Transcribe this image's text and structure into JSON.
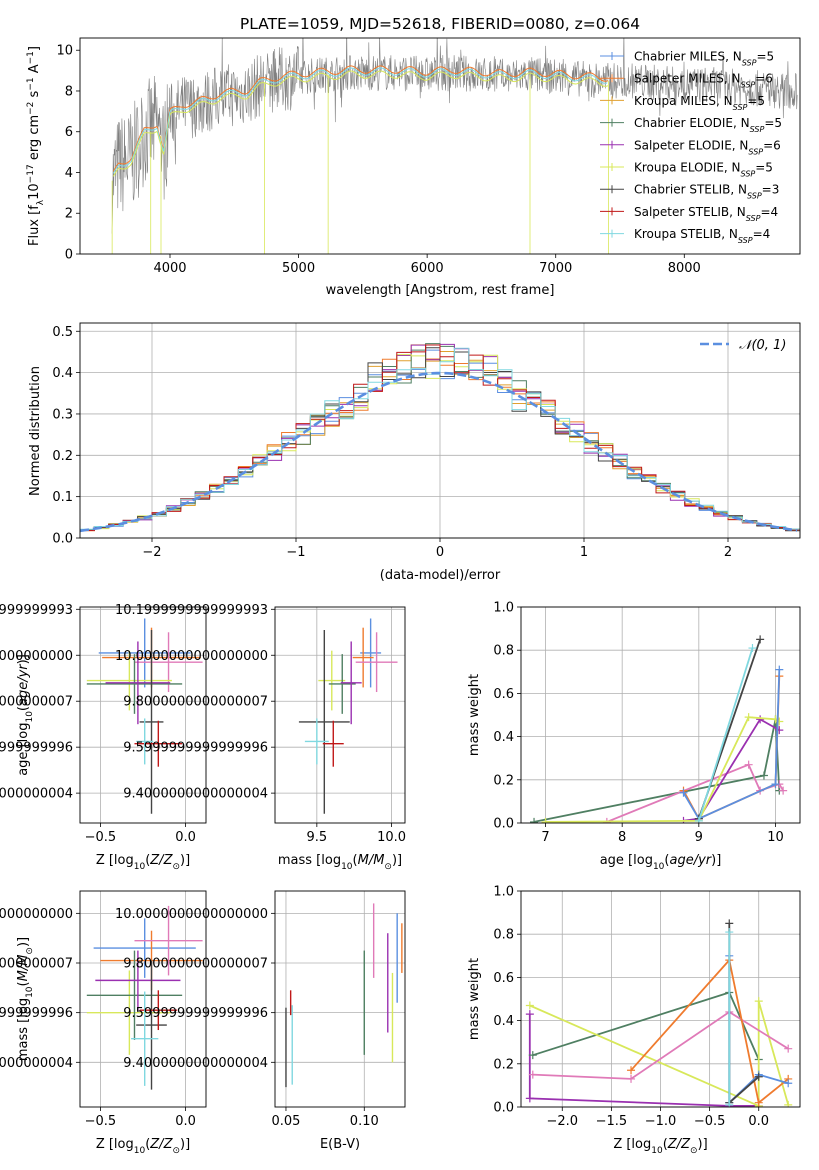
{
  "title": "PLATE=1059, MJD=52618, FIBERID=0080, z=0.064",
  "colors": {
    "chabrier_miles": "#5b8fe0",
    "salpeter_miles": "#ef7b2e",
    "kroupa_miles": "#e0a030",
    "chabrier_elodie": "#4f7f62",
    "salpeter_elodie": "#9a30b0",
    "kroupa_elodie": "#d8e85a",
    "chabrier_stelib": "#444444",
    "salpeter_stelib": "#c01818",
    "kroupa_stelib": "#80d8e0",
    "pink": "#e07ab8",
    "normal_curve": "#5b8fe0",
    "spectrum_grey": "#808080"
  },
  "legend_top": [
    {
      "name": "Chabrier MILES",
      "nssp": "5",
      "color_key": "chabrier_miles"
    },
    {
      "name": "Salpeter MILES",
      "nssp": "6",
      "color_key": "salpeter_miles"
    },
    {
      "name": "Kroupa MILES",
      "nssp": "5",
      "color_key": "kroupa_miles"
    },
    {
      "name": "Chabrier ELODIE",
      "nssp": "5",
      "color_key": "chabrier_elodie"
    },
    {
      "name": "Salpeter ELODIE",
      "nssp": "6",
      "color_key": "salpeter_elodie"
    },
    {
      "name": "Kroupa ELODIE",
      "nssp": "5",
      "color_key": "kroupa_elodie"
    },
    {
      "name": "Chabrier STELIB",
      "nssp": "3",
      "color_key": "chabrier_stelib"
    },
    {
      "name": "Salpeter STELIB",
      "nssp": "4",
      "color_key": "salpeter_stelib"
    },
    {
      "name": "Kroupa STELIB",
      "nssp": "4",
      "color_key": "kroupa_stelib"
    }
  ],
  "chart_data": [
    {
      "id": "spectrum",
      "type": "line",
      "xlabel": "wavelength [Angstrom, rest frame]",
      "ylabel": "Flux [f_λ10^-17 erg cm^-2 s^-1 A^-1]",
      "xlim": [
        3300,
        8900
      ],
      "ylim": [
        0,
        10.6
      ],
      "xticks": [
        4000,
        5000,
        6000,
        7000,
        8000
      ],
      "yticks": [
        0,
        2,
        4,
        6,
        8,
        10
      ],
      "data_profile": {
        "x": [
          3550,
          3600,
          3700,
          3800,
          3900,
          3950,
          4000,
          4100,
          4200,
          4300,
          4400,
          4500,
          4600,
          4700,
          4800,
          4900,
          5000,
          5200,
          5400,
          5600,
          5800,
          6000,
          6200,
          6400,
          6600,
          6800,
          7000,
          7200,
          7400,
          7600,
          7800,
          8000,
          8200,
          8400,
          8600,
          8800
        ],
        "y": [
          3.6,
          4.3,
          4.6,
          5.9,
          6.3,
          5.0,
          6.8,
          7.2,
          7.3,
          7.5,
          7.8,
          7.8,
          7.9,
          8.3,
          8.5,
          8.6,
          8.7,
          8.8,
          8.9,
          8.9,
          8.9,
          8.8,
          8.9,
          8.8,
          8.7,
          8.8,
          8.7,
          8.6,
          8.5,
          8.5,
          8.4,
          8.3,
          8.3,
          8.2,
          8.1,
          8.0
        ]
      }
    },
    {
      "id": "residuals",
      "type": "line",
      "xlabel": "(data-model)/error",
      "ylabel": "Normed distribution",
      "xlim": [
        -2.5,
        2.5
      ],
      "ylim": [
        0,
        0.52
      ],
      "xticks": [
        -2,
        -1,
        0,
        1,
        2
      ],
      "yticks": [
        0.0,
        0.1,
        0.2,
        0.3,
        0.4,
        0.5
      ],
      "legend": "𝒩(0, 1)",
      "grid": true
    },
    {
      "id": "z_age",
      "type": "scatter",
      "xlabel": "Z [log10(Z/Z⊙)]",
      "ylabel": "age [log10(age/yr)]",
      "xlim": [
        -0.62,
        0.12
      ],
      "ylim": [
        9.27,
        10.21
      ],
      "xticks": [
        -0.5,
        0.0
      ],
      "yticks": [
        9.4,
        9.6,
        9.8,
        10.0,
        10.2
      ],
      "grid": true,
      "points": [
        {
          "color_key": "chabrier_miles",
          "x": -0.24,
          "xerr": 0.27,
          "y": 10.01,
          "yerr": 0.15
        },
        {
          "color_key": "salpeter_miles",
          "x": -0.2,
          "xerr": 0.29,
          "y": 9.99,
          "yerr": 0.13
        },
        {
          "color_key": "pink",
          "x": -0.1,
          "xerr": 0.2,
          "y": 9.97,
          "yerr": 0.13
        },
        {
          "color_key": "kroupa_elodie",
          "x": -0.33,
          "xerr": 0.25,
          "y": 9.89,
          "yerr": 0.13
        },
        {
          "color_key": "chabrier_elodie",
          "x": -0.3,
          "xerr": 0.28,
          "y": 9.875,
          "yerr": 0.13
        },
        {
          "color_key": "salpeter_elodie",
          "x": -0.28,
          "xerr": 0.19,
          "y": 9.88,
          "yerr": 0.18
        },
        {
          "color_key": "chabrier_stelib",
          "x": -0.2,
          "xerr": 0.07,
          "y": 9.71,
          "yerr": 0.4
        },
        {
          "color_key": "salpeter_stelib",
          "x": -0.16,
          "xerr": 0.14,
          "y": 9.615,
          "yerr": 0.1
        },
        {
          "color_key": "kroupa_stelib",
          "x": -0.24,
          "xerr": 0.05,
          "y": 9.625,
          "yerr": 0.1
        }
      ]
    },
    {
      "id": "mass_age",
      "type": "scatter",
      "xlabel": "mass [log10(M/M⊙)]",
      "ylabel": "",
      "xlim": [
        9.22,
        10.09
      ],
      "ylim": [
        9.27,
        10.21
      ],
      "xticks": [
        9.5,
        10.0
      ],
      "yticks": [
        9.4,
        9.6,
        9.8,
        10.0,
        10.2
      ],
      "grid": true,
      "points": [
        {
          "color_key": "chabrier_miles",
          "x": 9.86,
          "xerr": 0.07,
          "y": 10.01,
          "yerr": 0.15
        },
        {
          "color_key": "salpeter_miles",
          "x": 9.81,
          "xerr": 0.07,
          "y": 9.99,
          "yerr": 0.13
        },
        {
          "color_key": "pink",
          "x": 9.9,
          "xerr": 0.14,
          "y": 9.97,
          "yerr": 0.13
        },
        {
          "color_key": "kroupa_elodie",
          "x": 9.6,
          "xerr": 0.09,
          "y": 9.89,
          "yerr": 0.13
        },
        {
          "color_key": "chabrier_elodie",
          "x": 9.67,
          "xerr": 0.09,
          "y": 9.875,
          "yerr": 0.13
        },
        {
          "color_key": "salpeter_elodie",
          "x": 9.73,
          "xerr": 0.07,
          "y": 9.88,
          "yerr": 0.18
        },
        {
          "color_key": "chabrier_stelib",
          "x": 9.55,
          "xerr": 0.17,
          "y": 9.71,
          "yerr": 0.4
        },
        {
          "color_key": "salpeter_stelib",
          "x": 9.61,
          "xerr": 0.07,
          "y": 9.615,
          "yerr": 0.1
        },
        {
          "color_key": "kroupa_stelib",
          "x": 9.5,
          "xerr": 0.08,
          "y": 9.625,
          "yerr": 0.1
        }
      ]
    },
    {
      "id": "age_weight",
      "type": "line",
      "xlabel": "age [log10(age/yr)]",
      "ylabel": "mass weight",
      "xlim": [
        6.68,
        10.32
      ],
      "ylim": [
        0,
        1
      ],
      "xticks": [
        7,
        8,
        9,
        10
      ],
      "yticks": [
        0.0,
        0.2,
        0.4,
        0.6,
        0.8,
        1.0
      ],
      "grid": true,
      "series": [
        {
          "color_key": "chabrier_elodie",
          "x": [
            6.85,
            9.85,
            10.0,
            10.05
          ],
          "y": [
            0.005,
            0.22,
            0.48,
            0.15
          ]
        },
        {
          "color_key": "pink",
          "x": [
            7.8,
            9.65,
            9.8,
            10.05,
            10.1
          ],
          "y": [
            0.005,
            0.27,
            0.15,
            0.18,
            0.15
          ]
        },
        {
          "color_key": "salpeter_elodie",
          "x": [
            8.8,
            9.0,
            9.8,
            10.05
          ],
          "y": [
            0.01,
            0.02,
            0.48,
            0.43
          ]
        },
        {
          "color_key": "kroupa_elodie",
          "x": [
            7.0,
            9.0,
            9.65,
            10.0,
            10.05
          ],
          "y": [
            0.005,
            0.01,
            0.49,
            0.48,
            0.47
          ]
        },
        {
          "color_key": "salpeter_miles",
          "x": [
            8.8,
            9.0,
            10.0,
            10.05
          ],
          "y": [
            0.15,
            0.02,
            0.18,
            0.68
          ]
        },
        {
          "color_key": "chabrier_miles",
          "x": [
            8.8,
            9.0,
            10.0,
            10.05
          ],
          "y": [
            0.14,
            0.02,
            0.18,
            0.71
          ]
        },
        {
          "color_key": "chabrier_stelib",
          "x": [
            9.0,
            9.8
          ],
          "y": [
            0.02,
            0.85
          ]
        },
        {
          "color_key": "kroupa_stelib",
          "x": [
            9.0,
            9.7
          ],
          "y": [
            0.01,
            0.81
          ]
        }
      ]
    },
    {
      "id": "z_mass",
      "type": "scatter",
      "xlabel": "Z [log10(Z/Z⊙)]",
      "ylabel": "mass [log10(M/M⊙)]",
      "xlim": [
        -0.62,
        0.12
      ],
      "ylim": [
        9.22,
        10.09
      ],
      "xticks": [
        -0.5,
        0.0
      ],
      "yticks": [
        9.4,
        9.6,
        9.8,
        10.0
      ],
      "grid": true,
      "points": [
        {
          "color_key": "chabrier_miles",
          "x": -0.24,
          "xerr": 0.3,
          "y": 9.86,
          "yerr": 0.12
        },
        {
          "color_key": "salpeter_miles",
          "x": -0.2,
          "xerr": 0.3,
          "y": 9.81,
          "yerr": 0.12
        },
        {
          "color_key": "pink",
          "x": -0.1,
          "xerr": 0.2,
          "y": 9.89,
          "yerr": 0.14
        },
        {
          "color_key": "kroupa_elodie",
          "x": -0.33,
          "xerr": 0.25,
          "y": 9.6,
          "yerr": 0.17
        },
        {
          "color_key": "chabrier_elodie",
          "x": -0.3,
          "xerr": 0.28,
          "y": 9.67,
          "yerr": 0.18
        },
        {
          "color_key": "salpeter_elodie",
          "x": -0.28,
          "xerr": 0.25,
          "y": 9.73,
          "yerr": 0.12
        },
        {
          "color_key": "chabrier_stelib",
          "x": -0.2,
          "xerr": 0.09,
          "y": 9.55,
          "yerr": 0.26
        },
        {
          "color_key": "salpeter_stelib",
          "x": -0.16,
          "xerr": 0.11,
          "y": 9.61,
          "yerr": 0.08
        },
        {
          "color_key": "kroupa_stelib",
          "x": -0.24,
          "xerr": 0.08,
          "y": 9.495,
          "yerr": 0.19
        }
      ]
    },
    {
      "id": "ebv_mass",
      "type": "scatter",
      "xlabel": "E(B-V)",
      "ylabel": "",
      "xlim": [
        0.043,
        0.126
      ],
      "ylim": [
        9.22,
        10.09
      ],
      "xticks": [
        0.05,
        0.1
      ],
      "xticklabels": [
        "0.05",
        "0.10"
      ],
      "yticks": [
        9.4,
        9.6,
        9.8,
        10.0
      ],
      "grid": true,
      "points": [
        {
          "color_key": "chabrier_miles",
          "x": 0.121,
          "y": 9.82,
          "yerr": 0.18
        },
        {
          "color_key": "salpeter_miles",
          "x": 0.124,
          "y": 9.86,
          "yerr": 0.1
        },
        {
          "color_key": "pink",
          "x": 0.106,
          "y": 9.89,
          "yerr": 0.15
        },
        {
          "color_key": "kroupa_elodie",
          "x": 0.118,
          "y": 9.58,
          "yerr": 0.18
        },
        {
          "color_key": "chabrier_elodie",
          "x": 0.1,
          "y": 9.64,
          "yerr": 0.21
        },
        {
          "color_key": "salpeter_elodie",
          "x": 0.115,
          "y": 9.72,
          "yerr": 0.2
        },
        {
          "color_key": "chabrier_stelib",
          "x": 0.05,
          "y": 9.46,
          "yerr": 0.16
        },
        {
          "color_key": "salpeter_stelib",
          "x": 0.053,
          "y": 9.64,
          "yerr": 0.05
        },
        {
          "color_key": "kroupa_stelib",
          "x": 0.054,
          "y": 9.47,
          "yerr": 0.16
        }
      ]
    },
    {
      "id": "z_weight",
      "type": "line",
      "xlabel": "Z [log10(Z/Z⊙)]",
      "ylabel": "mass weight",
      "xlim": [
        -2.42,
        0.42
      ],
      "ylim": [
        0,
        1
      ],
      "xticks": [
        -2.0,
        -1.5,
        -1.0,
        -0.5,
        0.0
      ],
      "yticks": [
        0.0,
        0.2,
        0.4,
        0.6,
        0.8,
        1.0
      ],
      "grid": true,
      "series": [
        {
          "color_key": "salpeter_elodie",
          "x": [
            -2.33,
            -2.33,
            -0.3,
            0.0
          ],
          "y": [
            0.43,
            0.04,
            0.005,
            0.005
          ]
        },
        {
          "color_key": "chabrier_elodie",
          "x": [
            -2.3,
            -0.3,
            0.0
          ],
          "y": [
            0.24,
            0.53,
            0.22
          ]
        },
        {
          "color_key": "kroupa_elodie",
          "x": [
            -2.33,
            0.0,
            0.0,
            0.3
          ],
          "y": [
            0.47,
            0.005,
            0.49,
            0.01
          ]
        },
        {
          "color_key": "pink",
          "x": [
            -2.3,
            -1.3,
            -0.3,
            0.3
          ],
          "y": [
            0.15,
            0.13,
            0.44,
            0.27
          ]
        },
        {
          "color_key": "salpeter_miles",
          "x": [
            -1.3,
            -0.3,
            0.0,
            0.3
          ],
          "y": [
            0.17,
            0.68,
            0.02,
            0.13
          ]
        },
        {
          "color_key": "chabrier_miles",
          "x": [
            -0.3,
            -0.3,
            0.0,
            0.3
          ],
          "y": [
            0.7,
            0.02,
            0.15,
            0.11
          ]
        },
        {
          "color_key": "chabrier_stelib",
          "x": [
            -0.3,
            -0.3,
            0.0
          ],
          "y": [
            0.85,
            0.02,
            0.14
          ]
        },
        {
          "color_key": "kroupa_stelib",
          "x": [
            -0.3,
            -0.3
          ],
          "y": [
            0.81,
            0.01
          ]
        }
      ]
    }
  ]
}
